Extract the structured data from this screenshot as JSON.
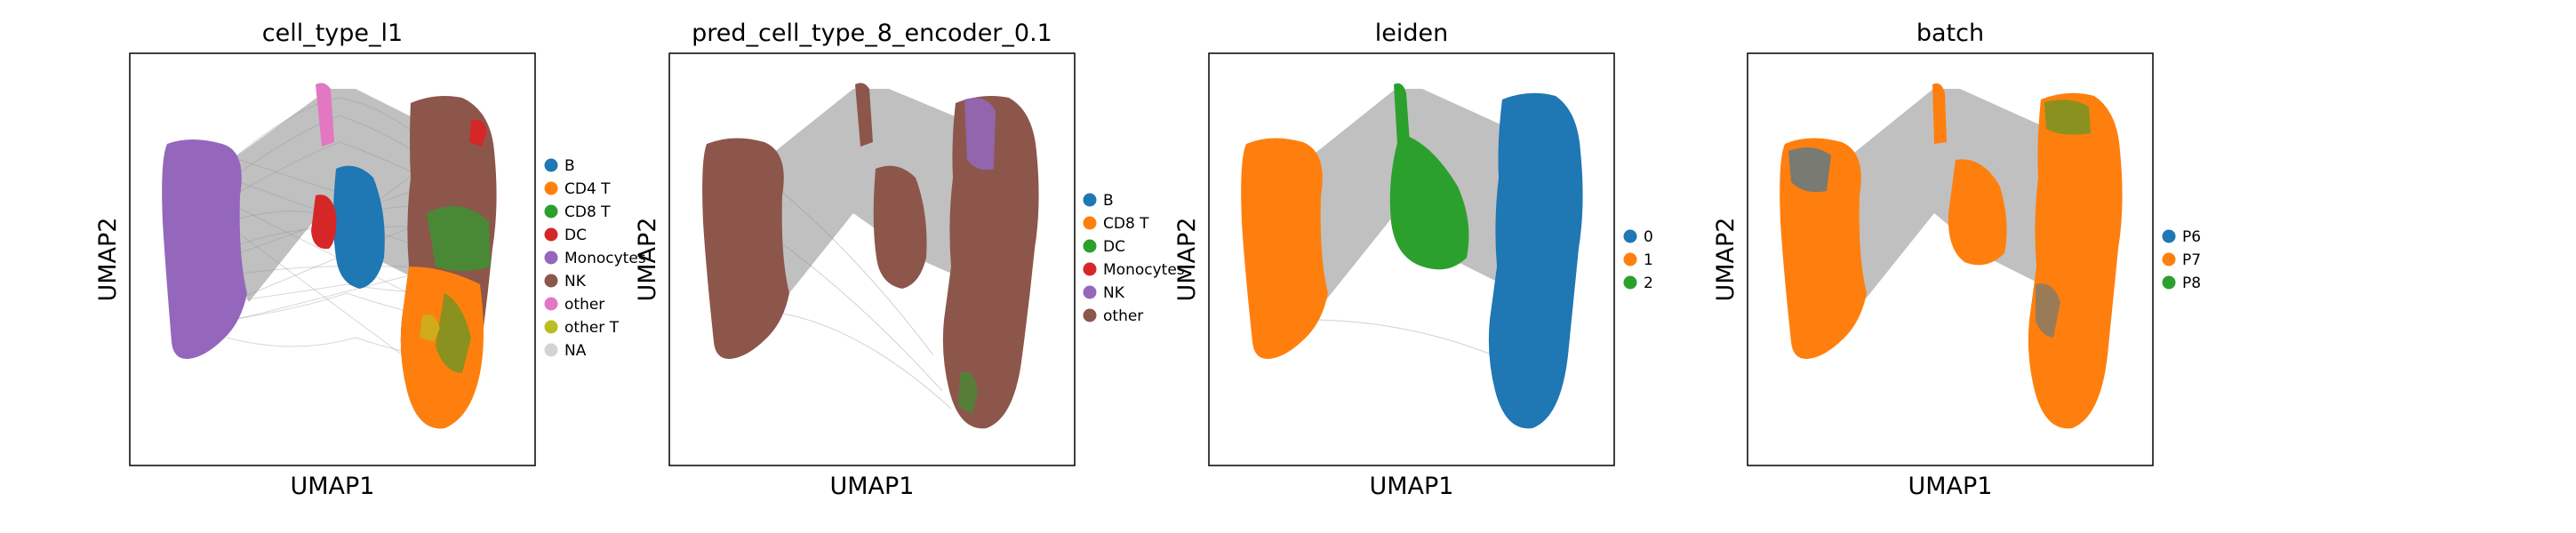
{
  "colors": {
    "edges": "#8c8c8c",
    "frame": "#000000",
    "background": "#ffffff"
  },
  "chart_data": [
    {
      "type": "scatter",
      "title": "cell_type_l1",
      "xlabel": "UMAP1",
      "ylabel": "UMAP2",
      "legend_position": "right",
      "series": [
        {
          "name": "B",
          "color": "#1f77b4"
        },
        {
          "name": "CD4 T",
          "color": "#ff7f0e"
        },
        {
          "name": "CD8 T",
          "color": "#2ca02c"
        },
        {
          "name": "DC",
          "color": "#d62728"
        },
        {
          "name": "Monocytes",
          "color": "#9467bd"
        },
        {
          "name": "NK",
          "color": "#8c564b"
        },
        {
          "name": "other",
          "color": "#e377c2"
        },
        {
          "name": "other T",
          "color": "#bcbd22"
        },
        {
          "name": "NA",
          "color": "#d3d3d3"
        }
      ]
    },
    {
      "type": "scatter",
      "title": "pred_cell_type_8_encoder_0.1",
      "xlabel": "UMAP1",
      "ylabel": "UMAP2",
      "legend_position": "right",
      "series": [
        {
          "name": "B",
          "color": "#1f77b4"
        },
        {
          "name": "CD8 T",
          "color": "#ff7f0e"
        },
        {
          "name": "DC",
          "color": "#2ca02c"
        },
        {
          "name": "Monocytes",
          "color": "#d62728"
        },
        {
          "name": "NK",
          "color": "#9467bd"
        },
        {
          "name": "other",
          "color": "#8c564b"
        }
      ]
    },
    {
      "type": "scatter",
      "title": "leiden",
      "xlabel": "UMAP1",
      "ylabel": "UMAP2",
      "legend_position": "right",
      "series": [
        {
          "name": "0",
          "color": "#1f77b4"
        },
        {
          "name": "1",
          "color": "#ff7f0e"
        },
        {
          "name": "2",
          "color": "#2ca02c"
        }
      ]
    },
    {
      "type": "scatter",
      "title": "batch",
      "xlabel": "UMAP1",
      "ylabel": "UMAP2",
      "legend_position": "right",
      "series": [
        {
          "name": "P6",
          "color": "#1f77b4"
        },
        {
          "name": "P7",
          "color": "#ff7f0e"
        },
        {
          "name": "P8",
          "color": "#2ca02c"
        }
      ]
    }
  ]
}
